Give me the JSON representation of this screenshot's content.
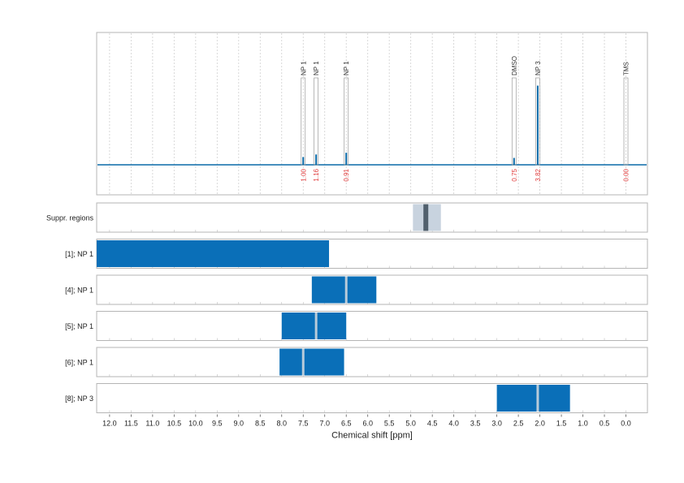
{
  "chart_data": {
    "type": "nmr-spectrum-with-region-map",
    "xlabel": "Chemical shift [ppm]",
    "xlim": [
      12.3,
      -0.5
    ],
    "x_reversed": true,
    "x_ticks": [
      12.0,
      11.5,
      11.0,
      10.5,
      10.0,
      9.5,
      9.0,
      8.5,
      8.0,
      7.5,
      7.0,
      6.5,
      6.0,
      5.5,
      5.0,
      4.5,
      4.0,
      3.5,
      3.0,
      2.5,
      2.0,
      1.5,
      1.0,
      0.5,
      0.0
    ],
    "x_tick_labels": [
      "12.0",
      "11.5",
      "11.0",
      "10.5",
      "10.0",
      "9.5",
      "9.0",
      "8.5",
      "8.0",
      "7.5",
      "7.0",
      "6.5",
      "6.0",
      "5.5",
      "5.0",
      "4.5",
      "4.0",
      "3.5",
      "3.0",
      "2.5",
      "2.0",
      "1.5",
      "1.0",
      "0.5",
      "0.0"
    ],
    "grid": "vertical dotted",
    "spectrum_color": "#0a6aa8",
    "peaks": [
      {
        "label": "NP 1",
        "ppm": 7.5,
        "height": 0.09,
        "integral": "1.00"
      },
      {
        "label": "NP 1",
        "ppm": 7.2,
        "height": 0.12,
        "integral": "1.16"
      },
      {
        "label": "NP 1",
        "ppm": 6.5,
        "height": 0.14,
        "integral": "0.91"
      },
      {
        "label": "DMSO",
        "ppm": 2.6,
        "height": 0.08,
        "integral": "0.75"
      },
      {
        "label": "NP 3",
        "ppm": 2.05,
        "height": 0.92,
        "integral": "3.82"
      },
      {
        "label": "TMS",
        "ppm": 0.0,
        "height": 0.0,
        "integral": "0.00"
      }
    ],
    "region_rows": [
      {
        "label": "Suppr. regions",
        "color": "#c8d3df",
        "center_color": "#51606d",
        "regions": [
          {
            "from": 4.95,
            "to": 4.3
          }
        ],
        "markers": [
          4.65
        ]
      },
      {
        "label": "[1]; NP 1",
        "color": "#0a6fb8",
        "marker_color": "#b8cbda",
        "regions": [
          {
            "from": 12.3,
            "to": 6.9
          }
        ],
        "markers": []
      },
      {
        "label": "[4]; NP 1",
        "color": "#0a6fb8",
        "marker_color": "#b8cbda",
        "regions": [
          {
            "from": 7.3,
            "to": 5.8
          }
        ],
        "markers": [
          6.5
        ]
      },
      {
        "label": "[5]; NP 1",
        "color": "#0a6fb8",
        "marker_color": "#b8cbda",
        "regions": [
          {
            "from": 8.0,
            "to": 6.5
          }
        ],
        "markers": [
          7.2
        ]
      },
      {
        "label": "[6]; NP 1",
        "color": "#0a6fb8",
        "marker_color": "#b8cbda",
        "regions": [
          {
            "from": 8.05,
            "to": 6.55
          }
        ],
        "markers": [
          7.5
        ]
      },
      {
        "label": "[8]; NP 3",
        "color": "#0a6fb8",
        "marker_color": "#b8cbda",
        "regions": [
          {
            "from": 3.0,
            "to": 1.3
          }
        ],
        "markers": [
          2.05
        ]
      }
    ]
  }
}
